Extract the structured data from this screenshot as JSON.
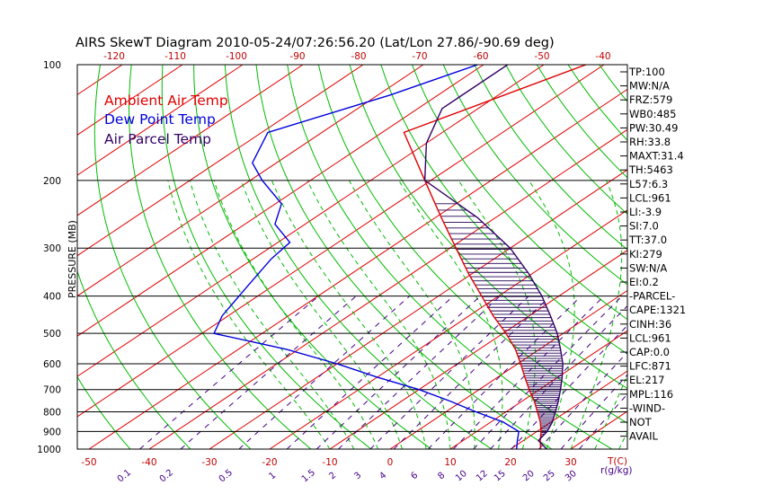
{
  "chart_data": {
    "type": "line",
    "title": "AIRS SkewT Diagram 2010-05-24/07:26:56.20 (Lat/Lon 27.86/-90.69 deg)",
    "ylabel": "PRESSURE (MB)",
    "y_scale": "log",
    "ylim": [
      1000,
      100
    ],
    "xlim": [
      -50,
      40
    ],
    "pressure_ticks": [
      100,
      200,
      300,
      400,
      500,
      600,
      700,
      800,
      900,
      1000
    ],
    "bottom_temp_ticks": [
      -50,
      -40,
      -30,
      -20,
      -10,
      0,
      10,
      20,
      30
    ],
    "top_temp_ticks": [
      -120,
      -110,
      -100,
      -90,
      -80,
      -70,
      -60,
      -50,
      -40
    ],
    "temp_axis_label": "T(C)",
    "mixing_ratio_ticks": [
      "0.1",
      "0.2",
      "0.5",
      "1",
      "1.5",
      "2",
      "3",
      "4",
      "6",
      "8",
      "10",
      "12",
      "15",
      "20",
      "25",
      "30"
    ],
    "mixing_ratio_label": "r(g/kg)",
    "legend": [
      {
        "label": "Ambient Air Temp",
        "color": "#e00000"
      },
      {
        "label": "Dew Point Temp",
        "color": "#0000dd"
      },
      {
        "label": "Air Parcel Temp",
        "color": "#330066"
      }
    ],
    "series": [
      {
        "name": "Ambient Air Temp",
        "color": "#e00000",
        "points": [
          {
            "p": 100,
            "t": -63
          },
          {
            "p": 150,
            "t": -76.4
          },
          {
            "p": 200,
            "t": -61
          },
          {
            "p": 250,
            "t": -49
          },
          {
            "p": 300,
            "t": -39
          },
          {
            "p": 350,
            "t": -30.5
          },
          {
            "p": 400,
            "t": -22.8
          },
          {
            "p": 450,
            "t": -16
          },
          {
            "p": 500,
            "t": -9.5
          },
          {
            "p": 550,
            "t": -4
          },
          {
            "p": 600,
            "t": 0.5
          },
          {
            "p": 650,
            "t": 4.5
          },
          {
            "p": 700,
            "t": 8.3
          },
          {
            "p": 750,
            "t": 12
          },
          {
            "p": 800,
            "t": 15.2
          },
          {
            "p": 850,
            "t": 18.2
          },
          {
            "p": 900,
            "t": 20.7
          },
          {
            "p": 950,
            "t": 22.8
          },
          {
            "p": 1000,
            "t": 25
          }
        ]
      },
      {
        "name": "Dew Point Temp",
        "color": "#0000dd",
        "points": [
          {
            "p": 100,
            "t": -81
          },
          {
            "p": 120,
            "t": -88
          },
          {
            "p": 150,
            "t": -99
          },
          {
            "p": 180,
            "t": -94
          },
          {
            "p": 200,
            "t": -88
          },
          {
            "p": 230,
            "t": -79
          },
          {
            "p": 260,
            "t": -75
          },
          {
            "p": 290,
            "t": -68
          },
          {
            "p": 320,
            "t": -67
          },
          {
            "p": 380,
            "t": -64
          },
          {
            "p": 450,
            "t": -61
          },
          {
            "p": 500,
            "t": -58
          },
          {
            "p": 550,
            "t": -42
          },
          {
            "p": 600,
            "t": -30
          },
          {
            "p": 650,
            "t": -20
          },
          {
            "p": 700,
            "t": -10
          },
          {
            "p": 750,
            "t": -2
          },
          {
            "p": 800,
            "t": 5
          },
          {
            "p": 850,
            "t": 12
          },
          {
            "p": 900,
            "t": 17
          },
          {
            "p": 950,
            "t": 19
          },
          {
            "p": 1000,
            "t": 21
          }
        ]
      },
      {
        "name": "Air Parcel Temp",
        "color": "#330066",
        "points": [
          {
            "p": 100,
            "t": -76
          },
          {
            "p": 130,
            "t": -76
          },
          {
            "p": 160,
            "t": -70
          },
          {
            "p": 200,
            "t": -61
          },
          {
            "p": 250,
            "t": -43
          },
          {
            "p": 300,
            "t": -30
          },
          {
            "p": 350,
            "t": -20.5
          },
          {
            "p": 400,
            "t": -12.8
          },
          {
            "p": 450,
            "t": -6.5
          },
          {
            "p": 500,
            "t": -1
          },
          {
            "p": 550,
            "t": 3.5
          },
          {
            "p": 600,
            "t": 7.5
          },
          {
            "p": 650,
            "t": 10.7
          },
          {
            "p": 700,
            "t": 13.5
          },
          {
            "p": 750,
            "t": 16
          },
          {
            "p": 800,
            "t": 18.2
          },
          {
            "p": 850,
            "t": 20.2
          },
          {
            "p": 900,
            "t": 21.7
          },
          {
            "p": 950,
            "t": 22.5
          },
          {
            "p": 1000,
            "t": 26
          }
        ]
      }
    ],
    "indices": [
      "TP:100",
      "MW:N/A",
      "FRZ:579",
      "WB0:485",
      "PW:30.49",
      "RH:33.8",
      "MAXT:31.4",
      "TH:5463",
      "L57:6.3",
      "LCL:961",
      "LI:-3.9",
      "SI:7.0",
      "TT:37.0",
      "KI:279",
      "SW:N/A",
      "EI:0.2",
      "-PARCEL-",
      "CAPE:1321",
      "CINH:36",
      "LCL:961",
      "CAP:0.0",
      "LFC:871",
      "EL:217",
      "MPL:116",
      "-WIND-",
      "NOT",
      "AVAIL"
    ],
    "colors": {
      "isotherm": "#e00000",
      "dry_adiabat": "#00bb00",
      "moist_adiabat": "#00bb00",
      "mixing_ratio": "#440088",
      "isobar": "#000000",
      "hatch": "#220055"
    }
  }
}
